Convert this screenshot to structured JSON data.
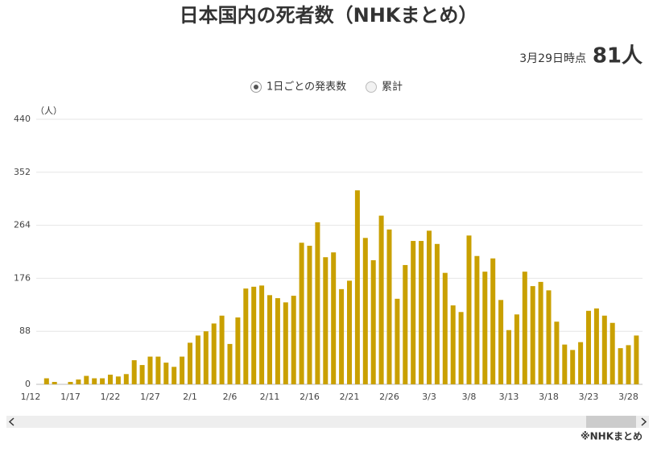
{
  "chart_data": {
    "type": "bar",
    "title": "日本国内の死者数（NHKまとめ）",
    "as_of": "3月29日時点",
    "headline": "81人",
    "legend_options": [
      "1日ごとの発表数",
      "累計"
    ],
    "y_label": "（人）",
    "source": "※NHKまとめ",
    "color": "#c9a000",
    "grid": true,
    "ylim": [
      0,
      440
    ],
    "yticks": [
      0,
      88,
      176,
      264,
      352,
      440
    ],
    "categories": [
      "1/12",
      null,
      null,
      null,
      null,
      "1/17",
      null,
      null,
      null,
      null,
      "1/22",
      null,
      null,
      null,
      null,
      "1/27",
      null,
      null,
      null,
      null,
      "2/1",
      null,
      null,
      null,
      null,
      "2/6",
      null,
      null,
      null,
      null,
      "2/11",
      null,
      null,
      null,
      null,
      "2/16",
      null,
      null,
      null,
      null,
      "2/21",
      null,
      null,
      null,
      null,
      "2/26",
      null,
      null,
      null,
      null,
      "3/3",
      null,
      null,
      null,
      null,
      "3/8",
      null,
      null,
      null,
      null,
      "3/13",
      null,
      null,
      null,
      null,
      "3/18",
      null,
      null,
      null,
      null,
      "3/23",
      null,
      null,
      null,
      null,
      "3/28",
      null
    ],
    "values": [
      0,
      0,
      10,
      4,
      0,
      4,
      8,
      14,
      10,
      10,
      16,
      13,
      17,
      40,
      32,
      46,
      46,
      36,
      29,
      46,
      69,
      81,
      88,
      101,
      114,
      67,
      111,
      159,
      162,
      164,
      148,
      143,
      136,
      147,
      235,
      230,
      269,
      211,
      219,
      158,
      172,
      322,
      243,
      206,
      280,
      257,
      142,
      198,
      238,
      238,
      255,
      233,
      185,
      131,
      120,
      247,
      213,
      187,
      209,
      140,
      90,
      116,
      187,
      163,
      170,
      156,
      104,
      66,
      57,
      70,
      122,
      126,
      114,
      102,
      60,
      65,
      81
    ]
  }
}
